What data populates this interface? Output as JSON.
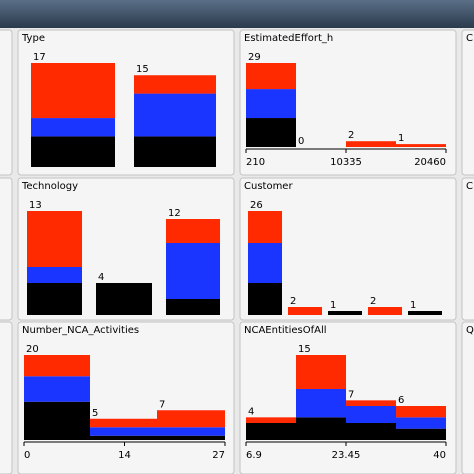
{
  "colors": [
    "#000000",
    "#1a35ff",
    "#ff2a00"
  ],
  "panels": [
    {
      "title": "Type",
      "bars": [
        {
          "count": 17,
          "segments": [
            5,
            3,
            9
          ]
        },
        {
          "count": 15,
          "segments": [
            5,
            7,
            3
          ]
        }
      ]
    },
    {
      "title": "EstimatedEffort_h",
      "bars": [
        {
          "count": 29,
          "segments": [
            10,
            10,
            9
          ]
        },
        {
          "count": 0,
          "segments": [
            0,
            0,
            0
          ]
        },
        {
          "count": 2,
          "segments": [
            0,
            0,
            2
          ]
        },
        {
          "count": 1,
          "segments": [
            0,
            0,
            1
          ]
        }
      ],
      "axis_labels": [
        210,
        10335,
        20460
      ]
    },
    {
      "title": "Technology",
      "bars": [
        {
          "count": 13,
          "segments": [
            4,
            2,
            7
          ]
        },
        {
          "count": 4,
          "segments": [
            4,
            0,
            0
          ]
        },
        {
          "count": 12,
          "segments": [
            2,
            7,
            3
          ]
        }
      ]
    },
    {
      "title": "Customer",
      "bars": [
        {
          "count": 26,
          "segments": [
            8,
            10,
            8
          ]
        },
        {
          "count": 2,
          "segments": [
            0,
            0,
            2
          ]
        },
        {
          "count": 1,
          "segments": [
            1,
            0,
            0
          ]
        },
        {
          "count": 2,
          "segments": [
            0,
            0,
            2
          ]
        },
        {
          "count": 1,
          "segments": [
            1,
            0,
            0
          ]
        }
      ]
    },
    {
      "title": "Number_NCA_Activities",
      "bars": [
        {
          "count": 20,
          "segments": [
            9,
            6,
            5
          ]
        },
        {
          "count": 5,
          "segments": [
            1,
            2,
            2
          ]
        },
        {
          "count": 7,
          "segments": [
            1,
            2,
            4
          ]
        }
      ],
      "axis_labels": [
        0,
        14,
        27
      ]
    },
    {
      "title": "NCAEntitiesOfAll",
      "bars": [
        {
          "count": 4,
          "segments": [
            3,
            0,
            1
          ]
        },
        {
          "count": 15,
          "segments": [
            4,
            5,
            6
          ]
        },
        {
          "count": 7,
          "segments": [
            3,
            3,
            1
          ]
        },
        {
          "count": 6,
          "segments": [
            2,
            2,
            2
          ]
        }
      ],
      "axis_labels": [
        6.9,
        23.45,
        40
      ]
    }
  ],
  "partial_titles": [
    "C",
    "C",
    "Q"
  ]
}
